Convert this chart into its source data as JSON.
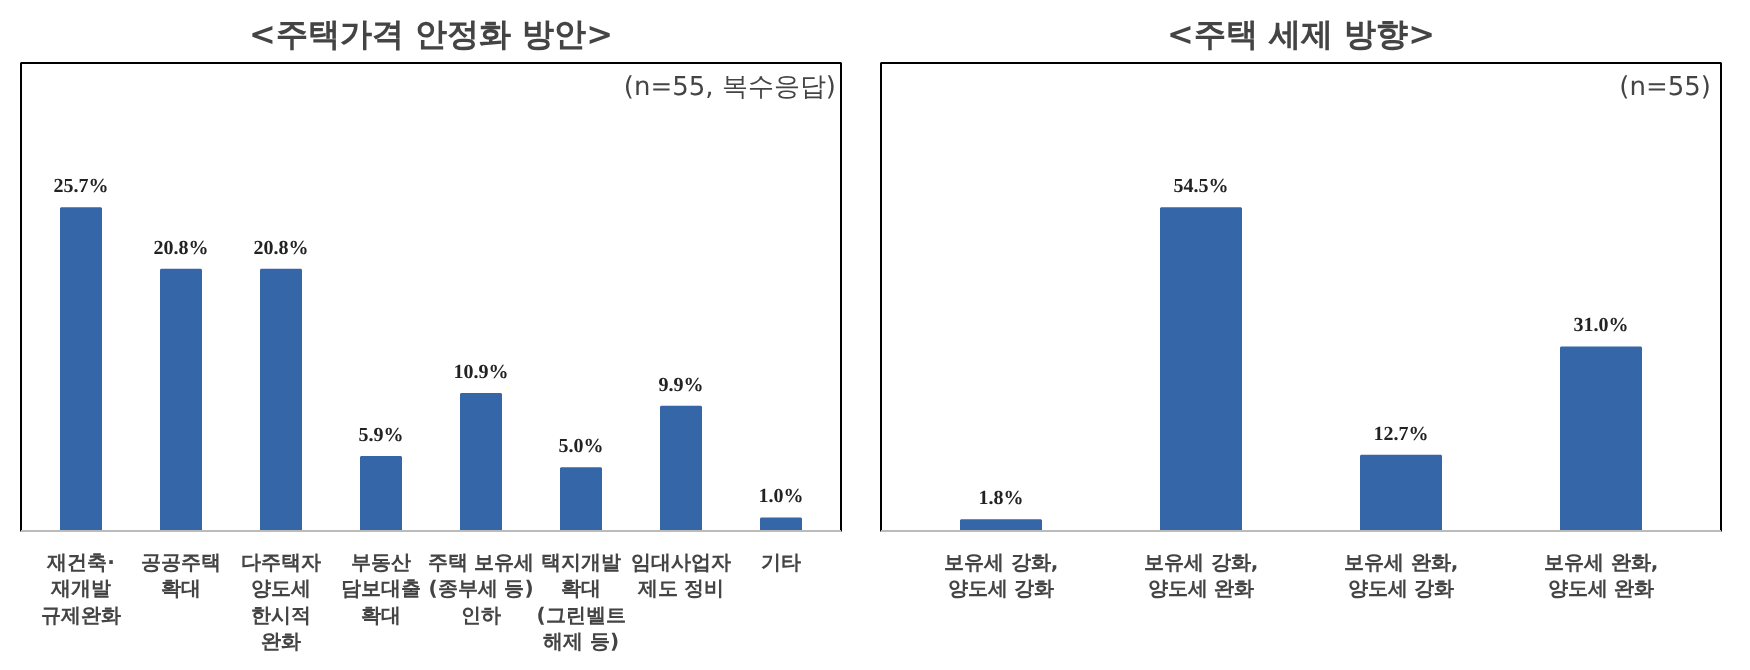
{
  "chart_data": [
    {
      "type": "bar",
      "title": "<주택가격 안정화 방안>",
      "annotations": [
        "(n=55, 복수응답)"
      ],
      "categories": [
        "재건축·\n재개발\n규제완화",
        "공공주택\n확대",
        "다주택자\n양도세\n한시적\n완화",
        "부동산\n담보대출\n확대",
        "주택 보유세\n(종부세 등)\n인하",
        "택지개발\n확대\n(그린벨트\n해제 등)",
        "임대사업자\n제도 정비",
        "기타"
      ],
      "values": [
        25.7,
        20.8,
        20.8,
        5.9,
        10.9,
        5.0,
        9.9,
        1.0
      ],
      "value_labels": [
        "25.7%",
        "20.8%",
        "20.8%",
        "5.9%",
        "10.9%",
        "5.0%",
        "9.9%",
        "1.0%"
      ],
      "color": "#3566a8",
      "grid": false
    },
    {
      "type": "bar",
      "title": "<주택 세제 방향>",
      "annotations": [
        "(n=55)"
      ],
      "categories": [
        "보유세 강화,\n양도세 강화",
        "보유세 강화,\n양도세 완화",
        "보유세 완화,\n양도세 강화",
        "보유세 완화,\n양도세 완화"
      ],
      "values": [
        1.8,
        54.5,
        12.7,
        31.0
      ],
      "value_labels": [
        "1.8%",
        "54.5%",
        "12.7%",
        "31.0%"
      ],
      "color": "#3566a8",
      "grid": false
    }
  ]
}
